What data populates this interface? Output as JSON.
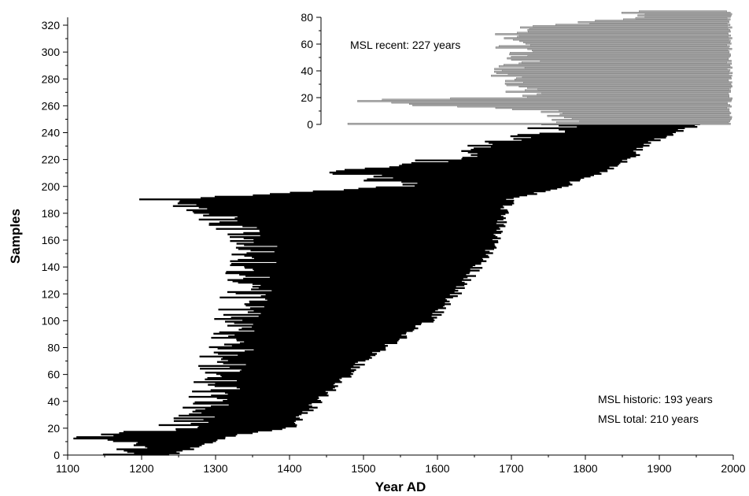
{
  "chart_data": [
    {
      "type": "bar",
      "orientation": "horizontal",
      "description_role": "main",
      "xlabel": "Year AD",
      "ylabel": "Samples",
      "xlim": [
        1100,
        2000
      ],
      "ylim": [
        0,
        330
      ],
      "xticks": [
        1100,
        1200,
        1300,
        1400,
        1500,
        1600,
        1700,
        1800,
        1900,
        2000
      ],
      "yticks": [
        0,
        20,
        40,
        60,
        80,
        100,
        120,
        140,
        160,
        180,
        200,
        220,
        240,
        260,
        280,
        300,
        320
      ],
      "series": [
        {
          "color": "#000000",
          "sample_count": 248,
          "start_year_envelope": [
            [
              0,
              1170
            ],
            [
              5,
              1185
            ],
            [
              10,
              1195
            ],
            [
              12,
              1100
            ],
            [
              20,
              1250
            ],
            [
              30,
              1275
            ],
            [
              40,
              1290
            ],
            [
              50,
              1300
            ],
            [
              60,
              1300
            ],
            [
              70,
              1310
            ],
            [
              80,
              1320
            ],
            [
              90,
              1320
            ],
            [
              100,
              1330
            ],
            [
              120,
              1340
            ],
            [
              140,
              1350
            ],
            [
              160,
              1350
            ],
            [
              180,
              1290
            ],
            [
              190,
              1230
            ],
            [
              195,
              1380
            ],
            [
              200,
              1560
            ],
            [
              210,
              1480
            ],
            [
              220,
              1610
            ],
            [
              230,
              1660
            ],
            [
              240,
              1740
            ],
            [
              248,
              1770
            ]
          ],
          "end_year_envelope": [
            [
              0,
              1240
            ],
            [
              5,
              1270
            ],
            [
              10,
              1295
            ],
            [
              15,
              1330
            ],
            [
              20,
              1400
            ],
            [
              30,
              1420
            ],
            [
              40,
              1440
            ],
            [
              50,
              1460
            ],
            [
              60,
              1480
            ],
            [
              70,
              1500
            ],
            [
              80,
              1530
            ],
            [
              90,
              1560
            ],
            [
              100,
              1590
            ],
            [
              110,
              1610
            ],
            [
              120,
              1625
            ],
            [
              130,
              1640
            ],
            [
              140,
              1655
            ],
            [
              150,
              1670
            ],
            [
              160,
              1680
            ],
            [
              170,
              1685
            ],
            [
              180,
              1690
            ],
            [
              190,
              1700
            ],
            [
              200,
              1770
            ],
            [
              210,
              1820
            ],
            [
              220,
              1860
            ],
            [
              230,
              1880
            ],
            [
              240,
              1920
            ],
            [
              248,
              1970
            ]
          ]
        }
      ],
      "annotations": [
        "MSL historic: 193 years",
        "MSL total: 210 years"
      ]
    },
    {
      "type": "bar",
      "orientation": "horizontal",
      "description_role": "inset",
      "xlim": [
        1100,
        2000
      ],
      "ylim": [
        0,
        80
      ],
      "yticks": [
        0,
        20,
        40,
        60,
        80
      ],
      "series": [
        {
          "color": "#aaaaaa",
          "sample_count": 85,
          "end_year": 1995,
          "start_year_envelope": [
            [
              0,
              1470
            ],
            [
              1,
              1770
            ],
            [
              5,
              1780
            ],
            [
              10,
              1760
            ],
            [
              17,
              1470
            ],
            [
              20,
              1720
            ],
            [
              30,
              1720
            ],
            [
              40,
              1690
            ],
            [
              50,
              1720
            ],
            [
              60,
              1700
            ],
            [
              70,
              1700
            ],
            [
              80,
              1860
            ],
            [
              85,
              1860
            ]
          ]
        }
      ],
      "annotations": [
        "MSL recent: 227 years"
      ]
    }
  ],
  "labels": {
    "x_title": "Year AD",
    "y_title": "Samples",
    "msl_recent": "MSL recent: 227 years",
    "msl_historic": "MSL historic: 193 years",
    "msl_total": "MSL total: 210 years"
  }
}
